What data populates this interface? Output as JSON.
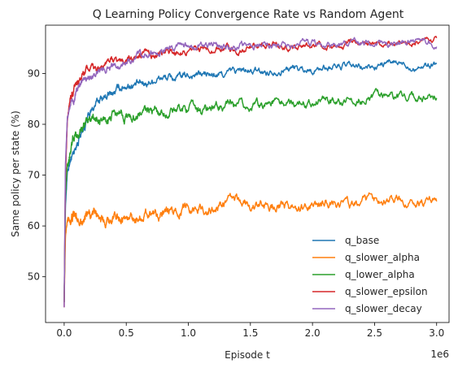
{
  "chart_data": {
    "type": "line",
    "title": "Q Learning Policy Convergence Rate vs Random Agent",
    "xlabel": "Episode t",
    "ylabel": "Same policy per state (%)",
    "x_offset_label": "1e6",
    "xlim": [
      -150000,
      3100000
    ],
    "ylim": [
      41,
      99.5
    ],
    "xticks": [
      0,
      500000,
      1000000,
      1500000,
      2000000,
      2500000,
      3000000
    ],
    "xtick_labels": [
      "0.0",
      "0.5",
      "1.0",
      "1.5",
      "2.0",
      "2.5",
      "3.0"
    ],
    "yticks": [
      50,
      60,
      70,
      80,
      90
    ],
    "ytick_labels": [
      "50",
      "60",
      "70",
      "80",
      "90"
    ],
    "grid": false,
    "legend_position": "lower-right",
    "x": [
      0,
      10000,
      25000,
      50000,
      100000,
      150000,
      200000,
      300000,
      400000,
      500000,
      600000,
      700000,
      800000,
      900000,
      1000000,
      1200000,
      1400000,
      1600000,
      1800000,
      2000000,
      2200000,
      2400000,
      2600000,
      2800000,
      3000000
    ],
    "series": [
      {
        "name": "q_base",
        "color": "#1f77b4",
        "noise": 0.45,
        "values": [
          45,
          64,
          70,
          73,
          76,
          79,
          82,
          85,
          86.5,
          87.5,
          88,
          88.5,
          89,
          89.3,
          89.5,
          89.8,
          90.2,
          90.5,
          90.8,
          91,
          91.2,
          91.3,
          91.6,
          91.8,
          92
        ]
      },
      {
        "name": "q_slower_alpha",
        "color": "#ff7f0e",
        "noise": 0.6,
        "values": [
          45,
          58,
          61,
          61.5,
          61.5,
          61.7,
          61.8,
          62,
          61.5,
          61.5,
          62,
          62.5,
          62.5,
          63,
          63.5,
          63.5,
          65,
          64,
          63.5,
          64,
          64.5,
          64.5,
          65.5,
          65,
          64
        ]
      },
      {
        "name": "q_lower_alpha",
        "color": "#2ca02c",
        "noise": 0.55,
        "values": [
          45,
          66,
          72,
          75,
          78,
          79.5,
          80.5,
          81,
          81.3,
          81.6,
          82,
          82.3,
          82.5,
          82.7,
          83,
          83.2,
          83.5,
          84,
          84.3,
          84.6,
          84.8,
          85,
          85.2,
          85.4,
          85.5
        ]
      },
      {
        "name": "q_slower_epsilon",
        "color": "#d62728",
        "noise": 0.4,
        "values": [
          44,
          70,
          80,
          85,
          88,
          89.5,
          90.5,
          91.5,
          92.3,
          92.8,
          93.2,
          93.6,
          94,
          94.2,
          94.5,
          94.8,
          95,
          95.2,
          95.4,
          95.6,
          95.8,
          96,
          96.2,
          96.3,
          96.5
        ]
      },
      {
        "name": "q_slower_decay",
        "color": "#9467bd",
        "noise": 0.4,
        "values": [
          44,
          72,
          81,
          84,
          86.5,
          88,
          89,
          90.5,
          91.5,
          92.5,
          93.3,
          93.8,
          94.3,
          94.7,
          95,
          95.2,
          95.4,
          95.5,
          95.6,
          95.7,
          95.8,
          95.9,
          96,
          96,
          96
        ]
      }
    ]
  }
}
